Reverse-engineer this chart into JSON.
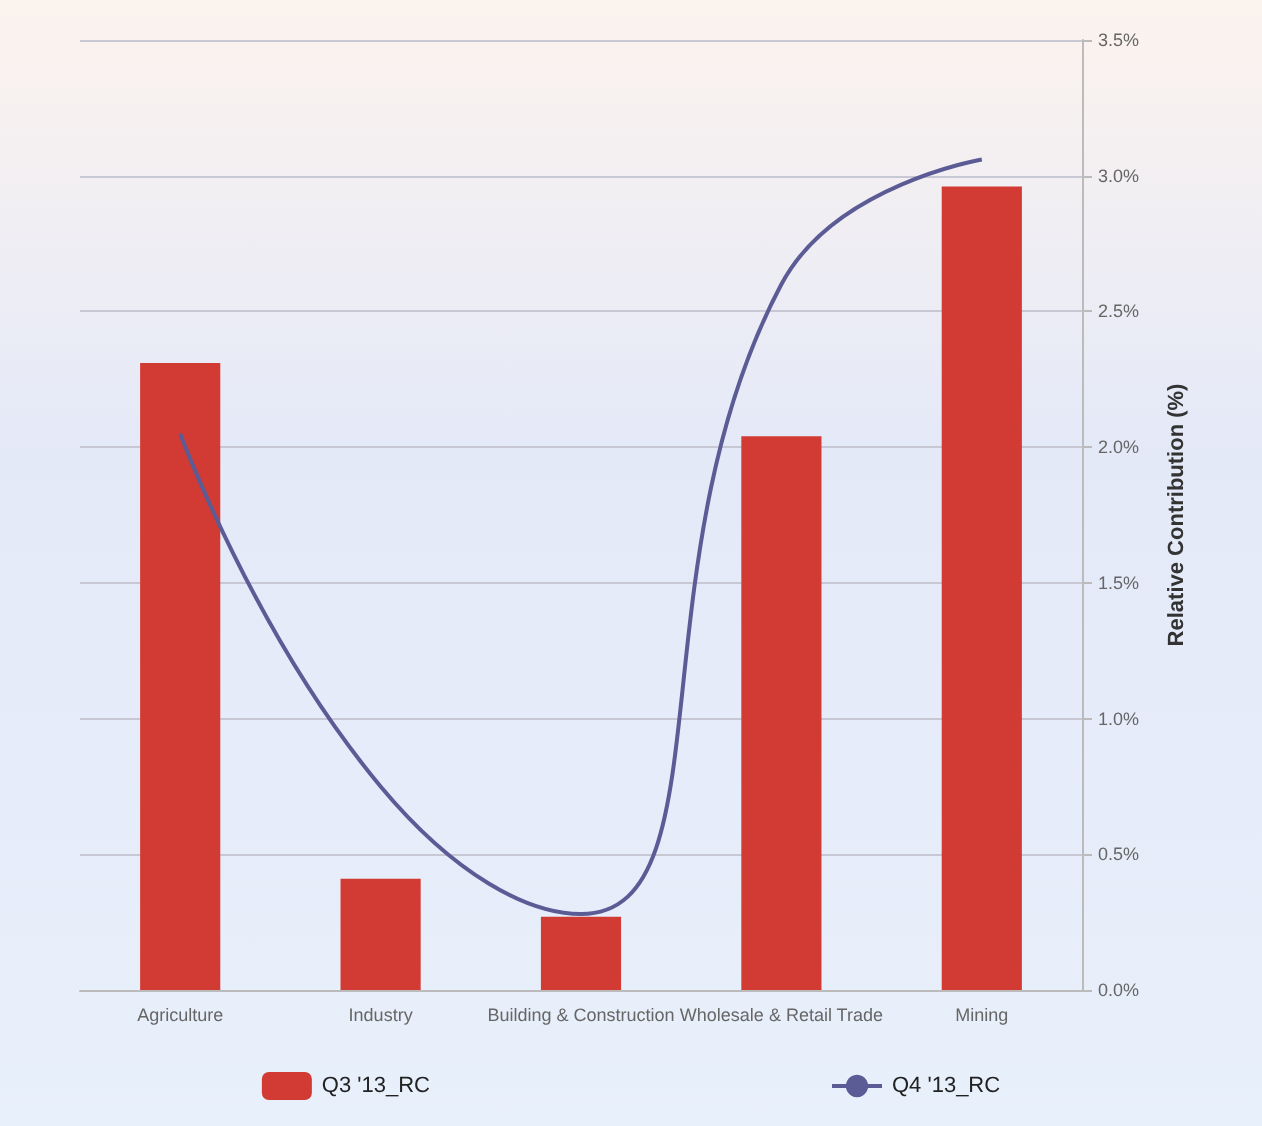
{
  "chart_data": {
    "type": "bar",
    "ylabel": "Relative Contribution (%)",
    "categories": [
      "Agriculture",
      "Industry",
      "Building & Construction",
      "Wholesale & Retail Trade",
      "Mining"
    ],
    "series": [
      {
        "name": "Q3 '13_RC",
        "color": "#d23b33",
        "values": [
          2.31,
          0.41,
          0.27,
          2.04,
          2.96
        ]
      },
      {
        "name": "Q4 '13_RC",
        "type": "line",
        "color": "#5b5b96",
        "values": [
          2.05,
          0.75,
          0.28,
          2.6,
          3.06
        ]
      }
    ],
    "ylim": [
      0,
      3.5
    ],
    "yticks": [
      {
        "value": 0,
        "label": "0.0%"
      },
      {
        "value": 0.5,
        "label": "0.5%"
      },
      {
        "value": 1,
        "label": "1.0%"
      },
      {
        "value": 1.5,
        "label": "1.5%"
      },
      {
        "value": 2,
        "label": "2.0%"
      },
      {
        "value": 2.5,
        "label": "2.5%"
      },
      {
        "value": 3,
        "label": "3.0%"
      },
      {
        "value": 3.5,
        "label": "3.5%"
      }
    ],
    "grid": "y",
    "legend": "bottom",
    "marker": "none",
    "line_style": "solid"
  }
}
